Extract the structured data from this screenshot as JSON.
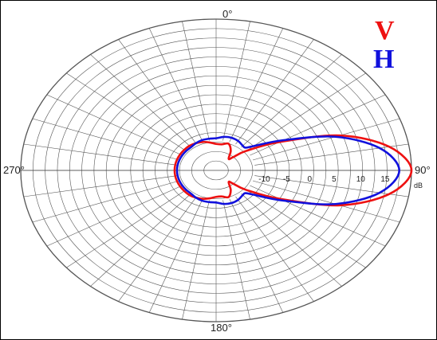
{
  "chart_data": {
    "type": "polar",
    "title": "",
    "angle_labels": {
      "top": "0°",
      "right": "90°",
      "bottom": "180°",
      "left": "270°"
    },
    "radial_ticks": [
      "-10",
      "-5",
      "0",
      "5",
      "10",
      "15"
    ],
    "radial_unit": "dB",
    "rlim": [
      -20,
      20
    ],
    "grid": true,
    "legend_placement": "top-right",
    "series": [
      {
        "name": "V",
        "color": "#ee1111",
        "points_deg_db": [
          [
            0,
            -13
          ],
          [
            10,
            -13
          ],
          [
            20,
            -12.5
          ],
          [
            30,
            -14
          ],
          [
            40,
            -16
          ],
          [
            45,
            -15
          ],
          [
            50,
            -12
          ],
          [
            60,
            -5
          ],
          [
            70,
            7
          ],
          [
            80,
            16
          ],
          [
            90,
            20
          ],
          [
            100,
            16
          ],
          [
            110,
            7
          ],
          [
            120,
            -5
          ],
          [
            130,
            -12
          ],
          [
            135,
            -15
          ],
          [
            140,
            -16
          ],
          [
            150,
            -14
          ],
          [
            160,
            -12.5
          ],
          [
            170,
            -13
          ],
          [
            180,
            -13
          ],
          [
            190,
            -12.5
          ],
          [
            200,
            -12
          ],
          [
            210,
            -11.7
          ],
          [
            220,
            -11.5
          ],
          [
            230,
            -11.5
          ],
          [
            240,
            -11.5
          ],
          [
            250,
            -11.5
          ],
          [
            260,
            -11.5
          ],
          [
            270,
            -11.5
          ],
          [
            280,
            -11.5
          ],
          [
            290,
            -11.5
          ],
          [
            300,
            -11.5
          ],
          [
            310,
            -11.5
          ],
          [
            320,
            -11.5
          ],
          [
            330,
            -11.7
          ],
          [
            340,
            -12
          ],
          [
            350,
            -12.5
          ]
        ]
      },
      {
        "name": "H",
        "color": "#1111dd",
        "points_deg_db": [
          [
            0,
            -11.5
          ],
          [
            10,
            -11
          ],
          [
            20,
            -10.8
          ],
          [
            30,
            -11
          ],
          [
            40,
            -11.5
          ],
          [
            45,
            -11.5
          ],
          [
            50,
            -10
          ],
          [
            60,
            -4
          ],
          [
            70,
            6
          ],
          [
            80,
            14
          ],
          [
            90,
            17.5
          ],
          [
            100,
            14
          ],
          [
            110,
            6
          ],
          [
            120,
            -4
          ],
          [
            130,
            -10
          ],
          [
            135,
            -11.5
          ],
          [
            140,
            -11.5
          ],
          [
            150,
            -11
          ],
          [
            160,
            -10.8
          ],
          [
            170,
            -11
          ],
          [
            180,
            -11.5
          ],
          [
            190,
            -11.5
          ],
          [
            200,
            -11.5
          ],
          [
            210,
            -11.7
          ],
          [
            220,
            -12
          ],
          [
            230,
            -12
          ],
          [
            240,
            -12
          ],
          [
            250,
            -12
          ],
          [
            260,
            -12
          ],
          [
            270,
            -12
          ],
          [
            280,
            -12
          ],
          [
            290,
            -12
          ],
          [
            300,
            -12
          ],
          [
            310,
            -12
          ],
          [
            320,
            -12
          ],
          [
            330,
            -11.7
          ],
          [
            340,
            -11.5
          ],
          [
            350,
            -11.5
          ]
        ]
      }
    ]
  }
}
